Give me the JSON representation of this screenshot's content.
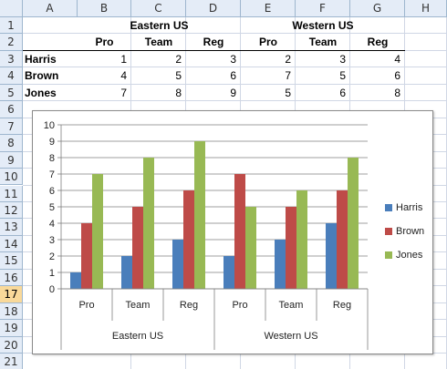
{
  "columns": [
    "A",
    "B",
    "C",
    "D",
    "E",
    "F",
    "G",
    "H"
  ],
  "rows": [
    "1",
    "2",
    "3",
    "4",
    "5",
    "6",
    "7",
    "8",
    "9",
    "10",
    "11",
    "12",
    "13",
    "14",
    "15",
    "16",
    "17",
    "18",
    "19",
    "20",
    "21"
  ],
  "selected_row": "17",
  "table": {
    "group_headers": [
      "Eastern US",
      "Western US"
    ],
    "sub_headers": [
      "Pro",
      "Team",
      "Reg",
      "Pro",
      "Team",
      "Reg"
    ],
    "data_rows": [
      {
        "name": "Harris",
        "values": [
          "1",
          "2",
          "3",
          "2",
          "3",
          "4"
        ]
      },
      {
        "name": "Brown",
        "values": [
          "4",
          "5",
          "6",
          "7",
          "5",
          "6"
        ]
      },
      {
        "name": "Jones",
        "values": [
          "7",
          "8",
          "9",
          "5",
          "6",
          "8"
        ]
      }
    ]
  },
  "chart_data": {
    "type": "bar",
    "title": "",
    "xlabel": "",
    "ylabel": "",
    "ylim": [
      0,
      10
    ],
    "yticks": [
      "0",
      "1",
      "2",
      "3",
      "4",
      "5",
      "6",
      "7",
      "8",
      "9",
      "10"
    ],
    "grid": true,
    "legend_position": "right",
    "categories": [
      "Pro",
      "Team",
      "Reg",
      "Pro",
      "Team",
      "Reg"
    ],
    "groups": [
      "Eastern US",
      "Western US"
    ],
    "series": [
      {
        "name": "Harris",
        "color": "#4a7ebb",
        "values": [
          1,
          2,
          3,
          2,
          3,
          4
        ]
      },
      {
        "name": "Brown",
        "color": "#be4b48",
        "values": [
          4,
          5,
          6,
          7,
          5,
          6
        ]
      },
      {
        "name": "Jones",
        "color": "#98b954",
        "values": [
          7,
          8,
          9,
          5,
          6,
          8
        ]
      }
    ]
  }
}
